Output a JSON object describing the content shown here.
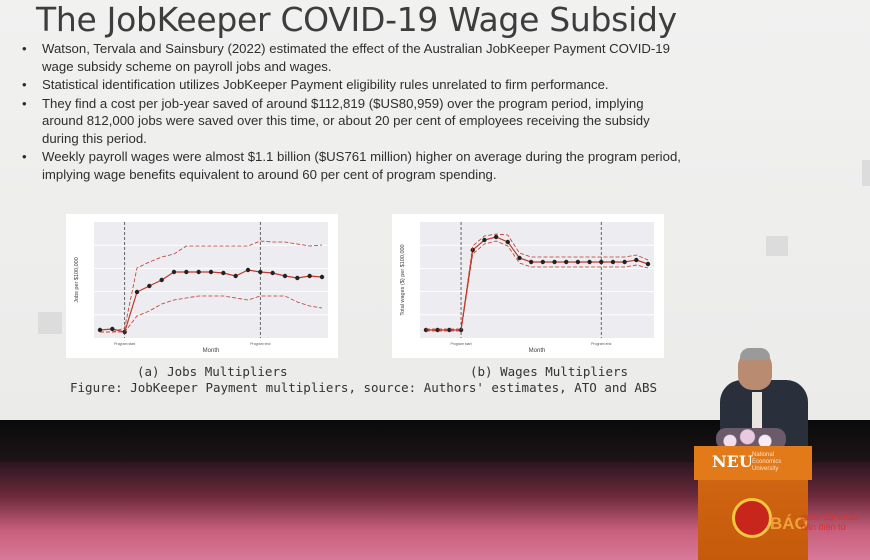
{
  "slide": {
    "title": "The JobKeeper COVID-19 Wage Subsidy",
    "bullets": [
      "Watson, Tervala and Sainsbury (2022) estimated the effect of the Australian JobKeeper Payment COVID-19 wage subsidy scheme on payroll jobs and wages.",
      "Statistical identification utilizes JobKeeper Payment eligibility rules unrelated to firm performance.",
      "They find a cost per job-year saved of around $112,819 ($US80,959) over the program period, implying around 812,000 jobs were saved over this time, or about 20 per cent of employees receiving the subsidy during this period.",
      "Weekly payroll wages were almost $1.1 billion ($US761 million) higher on average during the program period, implying wage benefits equivalent to around 60 per cent of program spending."
    ],
    "figure_a": {
      "caption": "(a) Jobs Multipliers",
      "ylabel": "Jobs per $100,000",
      "xlabel": "Month",
      "tick_program_start": "Program start",
      "tick_program_end": "Program end"
    },
    "figure_b": {
      "caption": "(b) Wages Multipliers",
      "ylabel": "Total wages ($) per $100,000",
      "xlabel": "Month",
      "tick_program_start": "Program start",
      "tick_program_end": "Program end"
    },
    "figure_caption": "Figure: JobKeeper Payment multipliers, source: Authors' estimates, ATO and ABS"
  },
  "podium": {
    "logo": "NEU",
    "sub": "National Economics University"
  },
  "watermark": {
    "main": "BÁO",
    "sub": "quân đội nhân dân điện tử"
  },
  "chart_data": [
    {
      "type": "line",
      "ylabel": "Jobs per $100,000",
      "xlabel": "Month",
      "x": [
        1,
        2,
        3,
        4,
        5,
        6,
        7,
        8,
        9,
        10,
        11,
        12,
        13,
        14,
        15,
        16,
        17,
        18,
        19
      ],
      "series": [
        {
          "values": [
            0.02,
            0.03,
            0.0,
            0.4,
            0.46,
            0.52,
            0.6,
            0.6,
            0.6,
            0.6,
            0.59,
            0.56,
            0.62,
            0.6,
            0.59,
            0.56,
            0.54,
            0.56,
            0.55
          ]
        },
        {
          "values": [
            0.0,
            0.0,
            0.04,
            0.64,
            0.7,
            0.75,
            0.78,
            0.86,
            0.86,
            0.86,
            0.86,
            0.86,
            0.86,
            0.91,
            0.9,
            0.9,
            0.88,
            0.86,
            0.87
          ]
        },
        {
          "values": [
            0.0,
            0.0,
            0.0,
            0.16,
            0.21,
            0.28,
            0.32,
            0.34,
            0.36,
            0.36,
            0.36,
            0.34,
            0.32,
            0.36,
            0.36,
            0.36,
            0.3,
            0.26,
            0.24
          ]
        }
      ],
      "program_start": 3,
      "program_end": 14
    },
    {
      "type": "line",
      "ylabel": "Total wages ($) per $100,000",
      "xlabel": "Month",
      "x": [
        1,
        2,
        3,
        4,
        5,
        6,
        7,
        8,
        9,
        10,
        11,
        12,
        13,
        14,
        15,
        16,
        17,
        18,
        19,
        20
      ],
      "series": [
        {
          "values": [
            0.02,
            0.02,
            0.02,
            0.02,
            0.82,
            0.92,
            0.95,
            0.9,
            0.74,
            0.7,
            0.7,
            0.7,
            0.7,
            0.7,
            0.7,
            0.7,
            0.7,
            0.7,
            0.72,
            0.68
          ]
        },
        {
          "values": [
            0.03,
            0.03,
            0.03,
            0.03,
            0.86,
            0.96,
            0.98,
            0.97,
            0.79,
            0.75,
            0.75,
            0.75,
            0.75,
            0.75,
            0.75,
            0.75,
            0.75,
            0.75,
            0.77,
            0.72
          ]
        },
        {
          "values": [
            0.01,
            0.01,
            0.01,
            0.01,
            0.78,
            0.88,
            0.91,
            0.86,
            0.69,
            0.65,
            0.65,
            0.65,
            0.65,
            0.65,
            0.65,
            0.65,
            0.65,
            0.65,
            0.67,
            0.64
          ]
        }
      ],
      "program_start": 4,
      "program_end": 16
    }
  ]
}
